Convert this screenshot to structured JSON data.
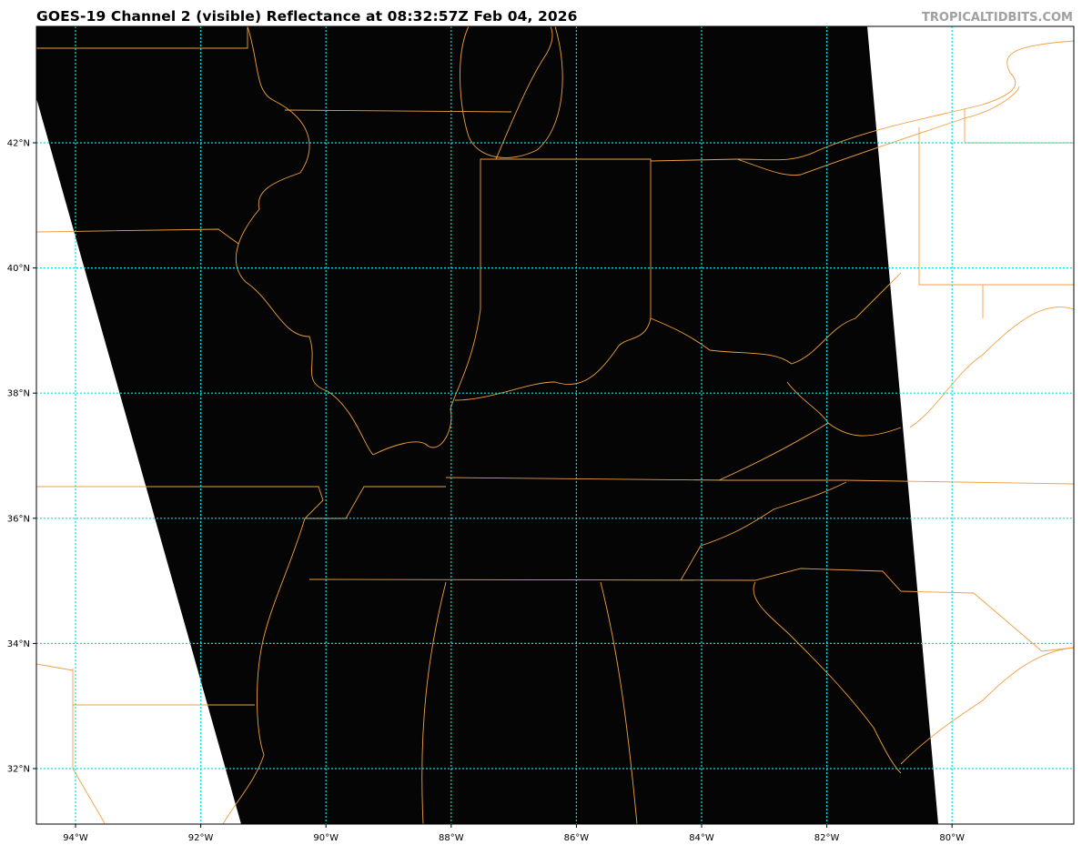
{
  "header": {
    "title": "GOES-19 Channel 2 (visible) Reflectance at 08:32:57Z Feb 04, 2026",
    "credit": "TROPICALTIDBITS.COM"
  },
  "map": {
    "product": "GOES-19 Channel 2 visible reflectance",
    "projection": "lat-lon",
    "lon_range": [
      -94.6,
      -78.0
    ],
    "lat_range": [
      31.1,
      43.8
    ],
    "lat_ticks": [
      {
        "value": 42,
        "label": "42°N"
      },
      {
        "value": 40,
        "label": "40°N"
      },
      {
        "value": 38,
        "label": "38°N"
      },
      {
        "value": 36,
        "label": "36°N"
      },
      {
        "value": 34,
        "label": "34°N"
      },
      {
        "value": 32,
        "label": "32°N"
      }
    ],
    "lon_ticks": [
      {
        "value": -94,
        "label": "94°W"
      },
      {
        "value": -92,
        "label": "92°W"
      },
      {
        "value": -90,
        "label": "90°W"
      },
      {
        "value": -88,
        "label": "88°W"
      },
      {
        "value": -86,
        "label": "86°W"
      },
      {
        "value": -84,
        "label": "84°W"
      },
      {
        "value": -82,
        "label": "82°W"
      },
      {
        "value": -80,
        "label": "80°W"
      }
    ],
    "colors": {
      "imagery": "#050505",
      "no_data": "#ffffff",
      "borders": "#f0a040",
      "gridlines": "#00e5e5"
    }
  }
}
